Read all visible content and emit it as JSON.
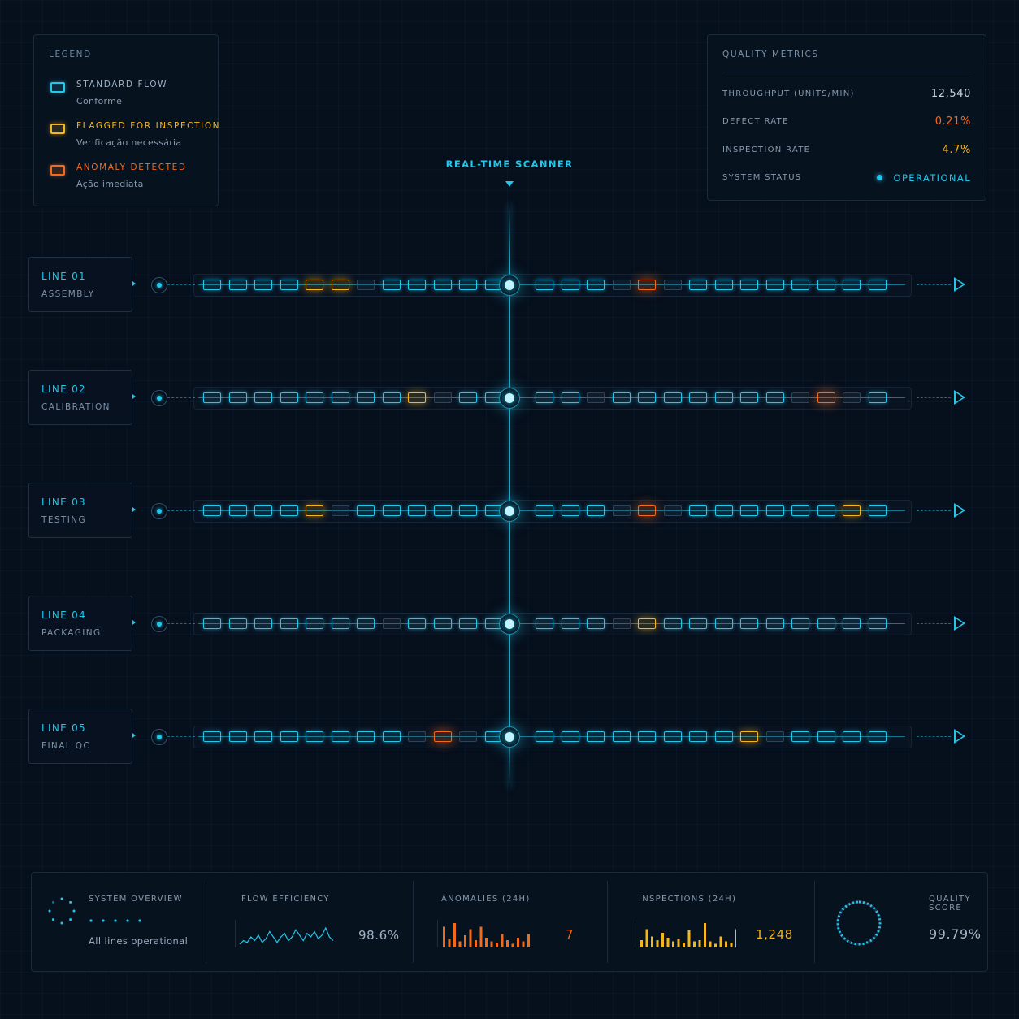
{
  "legend": {
    "title": "LEGEND",
    "items": [
      {
        "label": "STANDARD FLOW",
        "desc": "Conforme",
        "color": "#22c7ea"
      },
      {
        "label": "FLAGGED FOR INSPECTION",
        "desc": "Verificação necessária",
        "color": "#f5b51e"
      },
      {
        "label": "ANOMALY DETECTED",
        "desc": "Ação imediata",
        "color": "#f26a1c"
      }
    ]
  },
  "metrics": {
    "title": "QUALITY METRICS",
    "throughput_label": "THROUGHPUT (UNITS/MIN)",
    "throughput_value": "12,540",
    "defect_label": "DEFECT RATE",
    "defect_value": "0.21%",
    "inspection_label": "INSPECTION RATE",
    "inspection_value": "4.7%",
    "status_label": "SYSTEM STATUS",
    "status_value": "OPERATIONAL"
  },
  "scanner": {
    "label": "REAL-TIME SCANNER"
  },
  "lines": [
    {
      "title": "LINE 01",
      "subtitle": "ASSEMBLY",
      "units": [
        "n",
        "n",
        "n",
        "n",
        "f",
        "f",
        "d",
        "n",
        "n",
        "n",
        "n",
        "n",
        "n",
        "n",
        "n",
        "d",
        "a",
        "d",
        "n",
        "n",
        "n",
        "n",
        "n",
        "n",
        "n",
        "n"
      ]
    },
    {
      "title": "LINE 02",
      "subtitle": "CALIBRATION",
      "units": [
        "n",
        "n",
        "n",
        "n",
        "n",
        "n",
        "n",
        "n",
        "f",
        "d",
        "n",
        "n",
        "n",
        "n",
        "d",
        "n",
        "n",
        "n",
        "n",
        "n",
        "n",
        "n",
        "d",
        "a",
        "d",
        "n"
      ]
    },
    {
      "title": "LINE 03",
      "subtitle": "TESTING",
      "units": [
        "n",
        "n",
        "n",
        "n",
        "f",
        "d",
        "n",
        "n",
        "n",
        "n",
        "n",
        "n",
        "n",
        "n",
        "n",
        "d",
        "a",
        "d",
        "n",
        "n",
        "n",
        "n",
        "n",
        "n",
        "f",
        "n"
      ]
    },
    {
      "title": "LINE 04",
      "subtitle": "PACKAGING",
      "units": [
        "n",
        "n",
        "n",
        "n",
        "n",
        "n",
        "n",
        "d",
        "n",
        "n",
        "n",
        "n",
        "n",
        "n",
        "n",
        "d",
        "f",
        "n",
        "n",
        "n",
        "n",
        "n",
        "n",
        "n",
        "n",
        "n"
      ]
    },
    {
      "title": "LINE 05",
      "subtitle": "FINAL QC",
      "units": [
        "n",
        "n",
        "n",
        "n",
        "n",
        "n",
        "n",
        "n",
        "d",
        "a",
        "d",
        "n",
        "n",
        "n",
        "n",
        "n",
        "n",
        "n",
        "n",
        "n",
        "f",
        "d",
        "n",
        "n",
        "n",
        "n"
      ]
    }
  ],
  "footer": {
    "overview_label": "SYSTEM OVERVIEW",
    "overview_text": "All lines operational",
    "efficiency_label": "FLOW EFFICIENCY",
    "efficiency_value": "98.6%",
    "efficiency_spark": [
      5,
      7,
      6,
      9,
      7,
      10,
      6,
      8,
      12,
      9,
      6,
      9,
      11,
      7,
      9,
      13,
      10,
      7,
      11,
      9,
      12,
      8,
      10,
      14,
      9,
      7
    ],
    "anomalies_label": "ANOMALIES (24H)",
    "anomalies_value": "7",
    "anomalies_bars": [
      0.85,
      0.35,
      1.0,
      0.25,
      0.5,
      0.75,
      0.3,
      0.85,
      0.4,
      0.25,
      0.2,
      0.55,
      0.3,
      0.15,
      0.4,
      0.25,
      0.55
    ],
    "inspections_label": "INSPECTIONS (24H)",
    "inspections_value": "1,248",
    "inspections_bars": [
      0.3,
      0.75,
      0.45,
      0.3,
      0.6,
      0.4,
      0.25,
      0.35,
      0.2,
      0.7,
      0.25,
      0.3,
      1.0,
      0.25,
      0.15,
      0.45,
      0.25,
      0.2,
      0.75
    ],
    "quality_label": "QUALITY SCORE",
    "quality_value": "99.79%"
  },
  "colors": {
    "normal": "#22c7ea",
    "flagged": "#f5b51e",
    "anomaly": "#f26a1c",
    "dim": "#2c4558",
    "background": "#060f1c"
  }
}
